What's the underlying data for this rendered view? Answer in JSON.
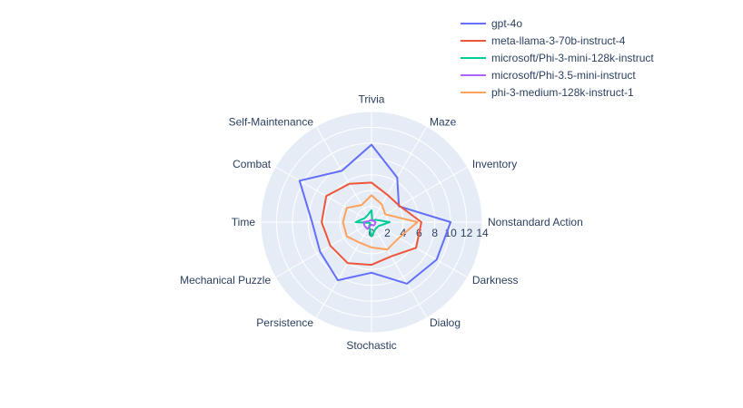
{
  "chart_data": {
    "type": "radar",
    "axes": [
      "Nonstandard Action",
      "Darkness",
      "Dialog",
      "Stochastic",
      "Persistence",
      "Mechanical Puzzle",
      "Time",
      "Combat",
      "Self-Maintenance",
      "Trivia",
      "Maze",
      "Inventory"
    ],
    "radial_ticks": [
      "0",
      "2",
      "4",
      "6",
      "8",
      "10",
      "12",
      "14"
    ],
    "rlim": [
      0,
      14
    ],
    "legend_position": "top-right",
    "series": [
      {
        "name": "gpt-4o",
        "color": "#636efa",
        "values": [
          10.0,
          9.5,
          9.0,
          6.4,
          8.5,
          7.5,
          7.5,
          10.5,
          7.5,
          9.8,
          6.5,
          4.0
        ]
      },
      {
        "name": "meta-llama-3-70b-instruct-4",
        "color": "#ef553b",
        "values": [
          6.3,
          6.5,
          5.0,
          5.4,
          6.0,
          6.0,
          6.3,
          6.6,
          5.6,
          5.0,
          4.0,
          4.1
        ]
      },
      {
        "name": "microsoft/Phi-3-mini-128k-instruct",
        "color": "#00cc96",
        "values": [
          2.3,
          1.0,
          1.0,
          1.8,
          0.6,
          0.2,
          2.0,
          1.0,
          1.0,
          1.5,
          0.2,
          0.6
        ]
      },
      {
        "name": "microsoft/Phi-3.5-mini-instruct",
        "color": "#ab63fa",
        "values": [
          0.5,
          0.5,
          0.5,
          0.3,
          1.0,
          1.0,
          1.0,
          0.3,
          0.3,
          0.2,
          0.3,
          0.3
        ]
      },
      {
        "name": "phi-3-medium-128k-instruct-1",
        "color": "#ffa15a",
        "values": [
          5.8,
          4.0,
          4.0,
          3.2,
          3.0,
          3.6,
          3.6,
          3.6,
          2.5,
          3.4,
          2.6,
          2.0
        ]
      }
    ]
  }
}
